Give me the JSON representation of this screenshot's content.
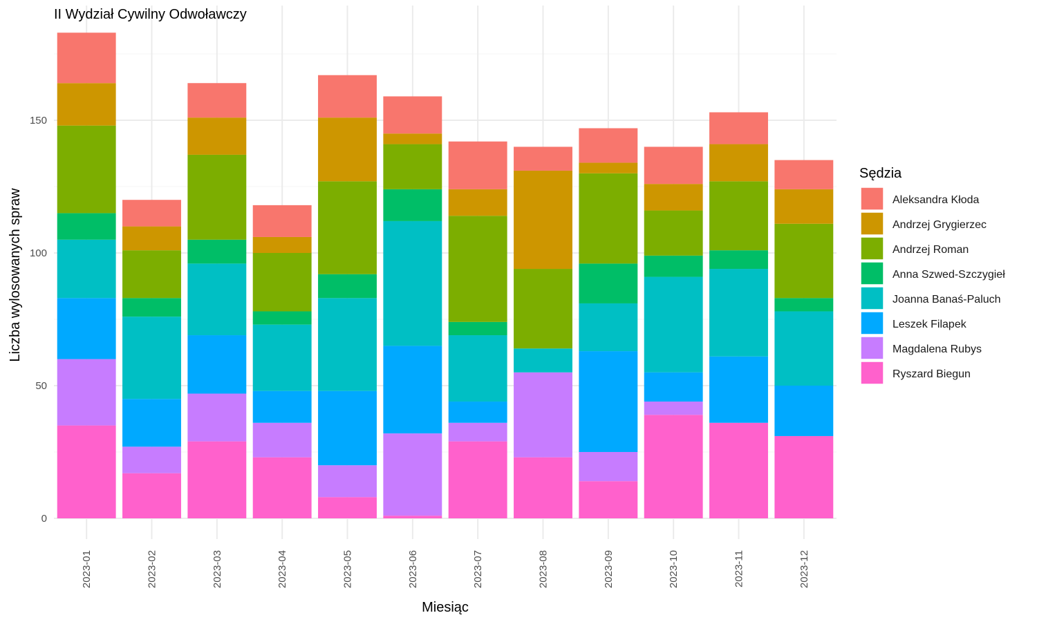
{
  "chart_data": {
    "type": "bar",
    "stacked": true,
    "title": "II Wydział Cywilny Odwoławczy",
    "xlabel": "Miesiąc",
    "ylabel": "Liczba wylosowanych spraw",
    "ylim": [
      0,
      192
    ],
    "yticks": [
      0,
      50,
      100,
      150
    ],
    "grid": true,
    "legend_title": "Sędzia",
    "legend_position": "right",
    "categories": [
      "2023-01",
      "2023-02",
      "2023-03",
      "2023-04",
      "2023-05",
      "2023-06",
      "2023-07",
      "2023-08",
      "2023-09",
      "2023-10",
      "2023-11",
      "2023-12"
    ],
    "series": [
      {
        "name": "Aleksandra Kłoda",
        "color": "#F8766D",
        "values": [
          19,
          10,
          13,
          12,
          16,
          14,
          18,
          9,
          13,
          14,
          12,
          11
        ]
      },
      {
        "name": "Andrzej Grygierzec",
        "color": "#CD9600",
        "values": [
          16,
          9,
          14,
          6,
          24,
          4,
          10,
          37,
          4,
          10,
          14,
          13
        ]
      },
      {
        "name": "Andrzej Roman",
        "color": "#7CAE00",
        "values": [
          33,
          18,
          32,
          22,
          35,
          17,
          40,
          30,
          34,
          17,
          26,
          28
        ]
      },
      {
        "name": "Anna Szwed-Szczygieł",
        "color": "#00BE67",
        "values": [
          10,
          7,
          9,
          5,
          9,
          12,
          5,
          0,
          15,
          8,
          7,
          5
        ]
      },
      {
        "name": "Joanna Banaś-Paluch",
        "color": "#00BFC4",
        "values": [
          22,
          31,
          27,
          25,
          35,
          47,
          25,
          9,
          18,
          36,
          33,
          28
        ]
      },
      {
        "name": "Leszek Filapek",
        "color": "#00A9FF",
        "values": [
          23,
          18,
          22,
          12,
          28,
          33,
          8,
          0,
          38,
          11,
          25,
          19
        ]
      },
      {
        "name": "Magdalena Rubys",
        "color": "#C77CFF",
        "values": [
          25,
          10,
          18,
          13,
          12,
          31,
          7,
          32,
          11,
          5,
          0,
          0
        ]
      },
      {
        "name": "Ryszard Biegun",
        "color": "#FF61CC",
        "values": [
          35,
          17,
          29,
          23,
          8,
          1,
          29,
          23,
          14,
          39,
          36,
          31
        ]
      }
    ]
  }
}
